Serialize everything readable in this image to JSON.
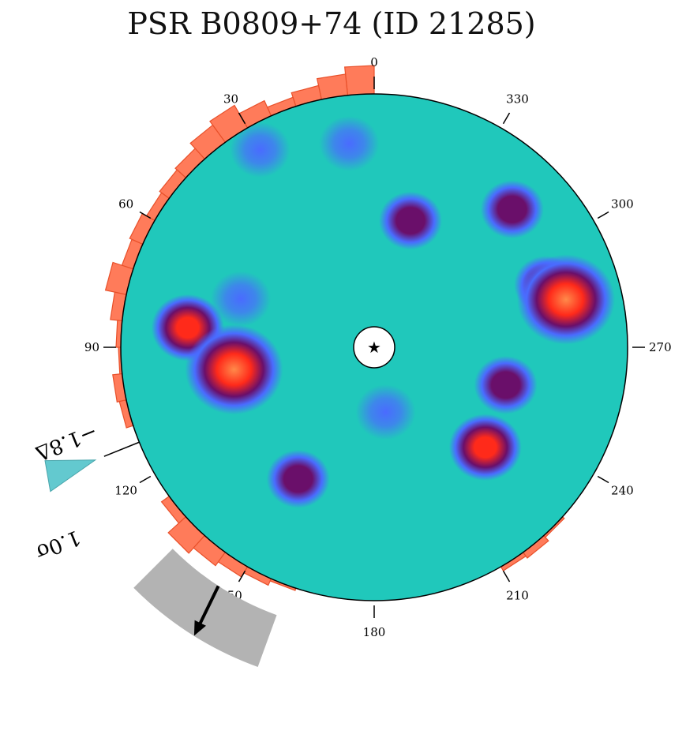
{
  "title": "PSR B0809+74 (ID 21285)",
  "chart_data": {
    "type": "heatmap",
    "projection": "polar",
    "title": "PSR B0809+74 (ID 21285)",
    "angle_direction": "counterclockwise",
    "angle_ticks": [
      "0",
      "30",
      "60",
      "90",
      "120",
      "150",
      "180",
      "210",
      "240",
      "270",
      "300",
      "330"
    ],
    "center_marker": "★",
    "colors": {
      "background_field": "#20c8bb",
      "low": "#4a6bff",
      "mid": "#6a0f6a",
      "high": "#ff2a1a",
      "peak": "#ff8a4a",
      "histogram_fill": "#ff7b5a",
      "histogram_edge": "#e8502a",
      "wedge": "#63c9cf",
      "band": "#b3b3b3",
      "arrow": "#000000"
    },
    "hotspots": [
      {
        "angle": 284,
        "r": 0.78,
        "level": "peak"
      },
      {
        "angle": 99,
        "r": 0.56,
        "level": "peak"
      },
      {
        "angle": 84,
        "r": 0.74,
        "level": "high"
      },
      {
        "angle": 228,
        "r": 0.59,
        "level": "high"
      },
      {
        "angle": 344,
        "r": 0.52,
        "level": "mid"
      },
      {
        "angle": 254,
        "r": 0.54,
        "level": "mid"
      },
      {
        "angle": 315,
        "r": 0.77,
        "level": "mid"
      },
      {
        "angle": 150,
        "r": 0.6,
        "level": "mid"
      },
      {
        "angle": 290,
        "r": 0.72,
        "level": "mid"
      },
      {
        "angle": 190,
        "r": 0.26,
        "level": "low"
      },
      {
        "angle": 7,
        "r": 0.81,
        "level": "low"
      },
      {
        "angle": 30,
        "r": 0.9,
        "level": "low"
      },
      {
        "angle": 70,
        "r": 0.56,
        "level": "low"
      }
    ],
    "edge_histogram": [
      {
        "angle": 3,
        "value": 0.12
      },
      {
        "angle": 9,
        "value": 0.09
      },
      {
        "angle": 15,
        "value": 0.06
      },
      {
        "angle": 21,
        "value": 0.04
      },
      {
        "angle": 27,
        "value": 0.07
      },
      {
        "angle": 33,
        "value": 0.11
      },
      {
        "angle": 39,
        "value": 0.09
      },
      {
        "angle": 45,
        "value": 0.06
      },
      {
        "angle": 51,
        "value": 0.05
      },
      {
        "angle": 57,
        "value": 0.04
      },
      {
        "angle": 63,
        "value": 0.06
      },
      {
        "angle": 69,
        "value": 0.05
      },
      {
        "angle": 75,
        "value": 0.09
      },
      {
        "angle": 81,
        "value": 0.05
      },
      {
        "angle": 87,
        "value": 0.02
      },
      {
        "angle": 93,
        "value": 0.01
      },
      {
        "angle": 99,
        "value": 0.04
      },
      {
        "angle": 105,
        "value": 0.03
      },
      {
        "angle": 111,
        "value": 0.0
      },
      {
        "angle": 117,
        "value": 0.0
      },
      {
        "angle": 123,
        "value": 0.0
      },
      {
        "angle": 129,
        "value": 0.04
      },
      {
        "angle": 135,
        "value": 0.1
      },
      {
        "angle": 141,
        "value": 0.07
      },
      {
        "angle": 147,
        "value": 0.05
      },
      {
        "angle": 153,
        "value": 0.03
      },
      {
        "angle": 159,
        "value": 0.01
      },
      {
        "angle": 213,
        "value": 0.02
      },
      {
        "angle": 219,
        "value": 0.03
      },
      {
        "angle": 225,
        "value": 0.01
      }
    ],
    "annotation": {
      "angle": 112,
      "label_1": "1.0σ",
      "label_2": "−1.8Δ"
    },
    "arrow": {
      "direction_deg": 154
    }
  }
}
